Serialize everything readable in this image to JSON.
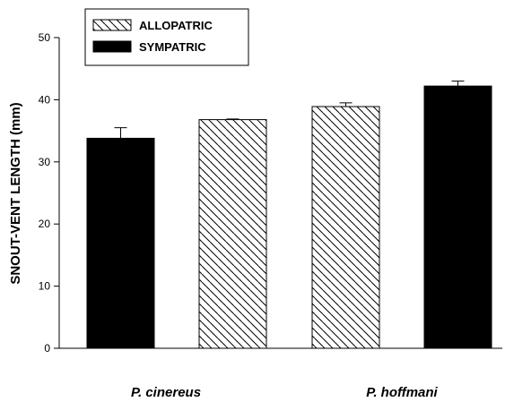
{
  "chart_data": {
    "type": "bar",
    "categories": [
      "P. cinereus",
      "P. hoffmani"
    ],
    "ylabel": "SNOUT-VENT LENGTH (mm)",
    "xlabel": "",
    "ylim": [
      0,
      50
    ],
    "yticks": [
      0,
      10,
      20,
      30,
      40,
      50
    ],
    "grid": false,
    "legend_position": "top-left",
    "series": [
      {
        "name": "SYMPATRIC",
        "fill": "solid",
        "color": "#000000",
        "values": [
          33.8,
          42.2
        ],
        "errors": [
          1.7,
          0.8
        ]
      },
      {
        "name": "ALLOPATRIC",
        "fill": "hatched",
        "color": "#ffffff",
        "values": [
          36.8,
          38.9
        ],
        "errors": [
          0.1,
          0.6
        ]
      }
    ],
    "bar_order": [
      {
        "category": 0,
        "series": 0
      },
      {
        "category": 0,
        "series": 1
      },
      {
        "category": 1,
        "series": 1
      },
      {
        "category": 1,
        "series": 0
      }
    ],
    "legend": [
      "ALLOPATRIC",
      "SYMPATRIC"
    ]
  }
}
